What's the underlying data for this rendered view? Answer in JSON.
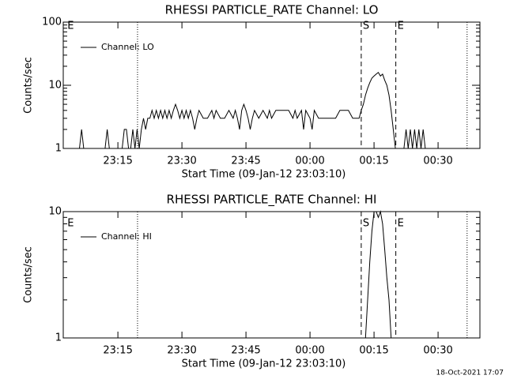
{
  "chart_data": [
    {
      "type": "line",
      "title": "RHESSI PARTICLE_RATE Channel: LO",
      "ylabel": "Counts/sec",
      "xlabel": "Start Time (09-Jan-12 23:03:10)",
      "log_y": true,
      "legend": "upper left",
      "xlim": [
        2.2,
        99.8
      ],
      "ylim": [
        1,
        100
      ],
      "xticks": [
        {
          "value": 15,
          "label": "23:15"
        },
        {
          "value": 30,
          "label": "23:30"
        },
        {
          "value": 45,
          "label": "23:45"
        },
        {
          "value": 60,
          "label": "00:00"
        },
        {
          "value": 75,
          "label": "00:15"
        },
        {
          "value": 90,
          "label": "00:30"
        }
      ],
      "yticks": [
        1,
        10,
        100
      ],
      "markers": [
        {
          "x": 2.8,
          "style": "none",
          "label": "E"
        },
        {
          "x": 19.6,
          "style": "dotted"
        },
        {
          "x": 72,
          "style": "dashed",
          "label": "S"
        },
        {
          "x": 80.1,
          "style": "dashed",
          "label": "E"
        },
        {
          "x": 96.8,
          "style": "dotted"
        }
      ],
      "series": [
        {
          "name": "Channel: LO",
          "color": "#000000",
          "x": [
            4,
            6,
            6.5,
            7,
            12,
            12.5,
            13,
            16,
            16.5,
            17,
            17.5,
            18,
            18.5,
            19,
            19.5,
            20,
            20.5,
            21,
            21.5,
            22,
            22.5,
            23,
            23.5,
            24,
            24.5,
            25,
            25.5,
            26,
            26.5,
            27,
            27.5,
            28,
            28.5,
            29,
            29.5,
            30,
            30.5,
            31,
            31.5,
            32,
            32.5,
            33,
            33.5,
            34,
            35,
            36,
            37,
            37.5,
            38,
            39,
            40,
            41,
            42,
            42.5,
            43,
            43.5,
            44,
            44.5,
            45,
            45.5,
            46,
            46.5,
            47,
            48,
            49,
            50,
            50.5,
            51,
            52,
            53,
            54,
            55,
            56,
            56.5,
            57,
            58,
            58.5,
            59,
            60,
            60.5,
            61,
            62,
            63,
            64,
            65,
            66,
            67,
            68,
            69,
            70,
            71,
            71.5,
            72,
            72.5,
            73,
            73.5,
            74,
            74.5,
            75,
            75.5,
            76,
            76.5,
            77,
            77.5,
            78,
            78.5,
            79,
            79.5,
            80,
            82,
            82.5,
            83,
            83.5,
            84,
            84.5,
            85,
            85.5,
            86,
            86.5,
            87
          ],
          "values": [
            1,
            1,
            2,
            1,
            1,
            2,
            1,
            1,
            2,
            2,
            1,
            1,
            2,
            1,
            2,
            1,
            2,
            3,
            2,
            3,
            3,
            4,
            3,
            4,
            3,
            4,
            3,
            4,
            3,
            4,
            3,
            4,
            5,
            4,
            3,
            4,
            3,
            4,
            3,
            4,
            3,
            2,
            3,
            4,
            3,
            3,
            4,
            3,
            4,
            3,
            3,
            4,
            3,
            4,
            3,
            2,
            4,
            5,
            4,
            3,
            2,
            3,
            4,
            3,
            4,
            3,
            4,
            3,
            4,
            4,
            4,
            4,
            3,
            4,
            3,
            4,
            2,
            4,
            3,
            2,
            4,
            3,
            3,
            3,
            3,
            3,
            4,
            4,
            4,
            3,
            3,
            3,
            4,
            5,
            7,
            9,
            11,
            13,
            14,
            15,
            16,
            14,
            15,
            12,
            10,
            7,
            4,
            2,
            1,
            1,
            2,
            1,
            2,
            1,
            2,
            1,
            2,
            1,
            2,
            1
          ]
        }
      ]
    },
    {
      "type": "line",
      "title": "RHESSI PARTICLE_RATE Channel: HI",
      "ylabel": "Counts/sec",
      "xlabel": "Start Time (09-Jan-12 23:03:10)",
      "log_y": true,
      "legend": "upper left",
      "xlim": [
        2.2,
        99.8
      ],
      "ylim": [
        1,
        10
      ],
      "xticks": [
        {
          "value": 15,
          "label": "23:15"
        },
        {
          "value": 30,
          "label": "23:30"
        },
        {
          "value": 45,
          "label": "23:45"
        },
        {
          "value": 60,
          "label": "00:00"
        },
        {
          "value": 75,
          "label": "00:15"
        },
        {
          "value": 90,
          "label": "00:30"
        }
      ],
      "yticks": [
        1,
        10
      ],
      "markers": [
        {
          "x": 2.8,
          "style": "none",
          "label": "E"
        },
        {
          "x": 19.6,
          "style": "dotted"
        },
        {
          "x": 72,
          "style": "dashed",
          "label": "S"
        },
        {
          "x": 80.1,
          "style": "dashed",
          "label": "E"
        },
        {
          "x": 96.8,
          "style": "dotted"
        }
      ],
      "series": [
        {
          "name": "Channel: HI",
          "color": "#000000",
          "x": [
            72,
            73,
            73.5,
            74,
            74.5,
            75,
            75.5,
            76,
            76.5,
            77,
            77.5,
            78,
            78.5,
            79
          ],
          "values": [
            1,
            1,
            2,
            4,
            7,
            10,
            10,
            9,
            10,
            8,
            5,
            3,
            2,
            1
          ]
        }
      ]
    }
  ],
  "footer": "18-Oct-2021 17:07"
}
